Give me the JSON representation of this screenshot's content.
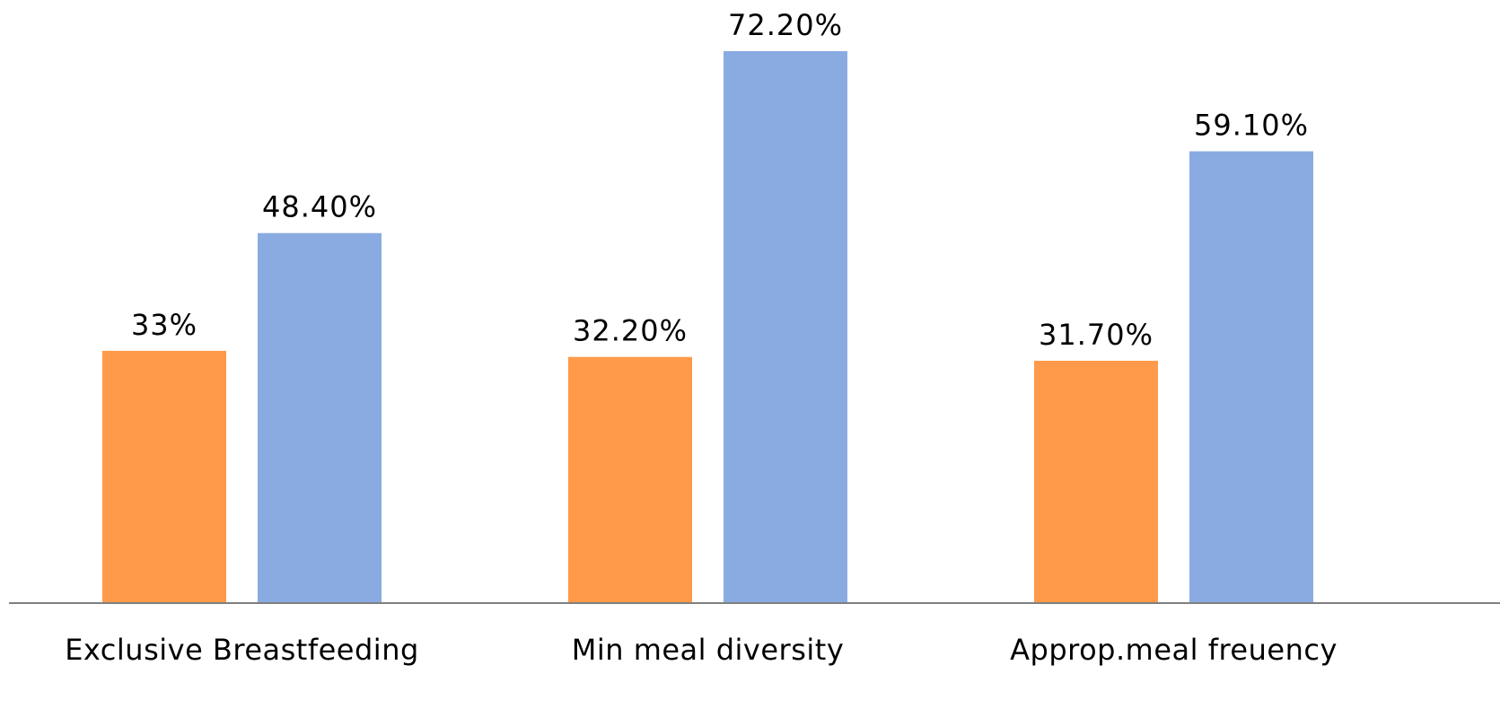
{
  "chart_data": {
    "type": "bar",
    "categories": [
      "Exclusive Breastfeeding",
      "Min meal diversity",
      "Approp.meal freuency"
    ],
    "series": [
      {
        "values": [
          33,
          32.2,
          31.7
        ],
        "labels": [
          "33%",
          "32.20%",
          "31.70%"
        ],
        "color": "#FF9A4A"
      },
      {
        "values": [
          48.4,
          72.2,
          59.1
        ],
        "labels": [
          "48.40%",
          "72.20%",
          "59.10%"
        ],
        "color": "#8AABE2"
      }
    ],
    "ylim": [
      0,
      80
    ],
    "grid": false,
    "legend": "none",
    "axis_color": "#7F7F7F"
  }
}
